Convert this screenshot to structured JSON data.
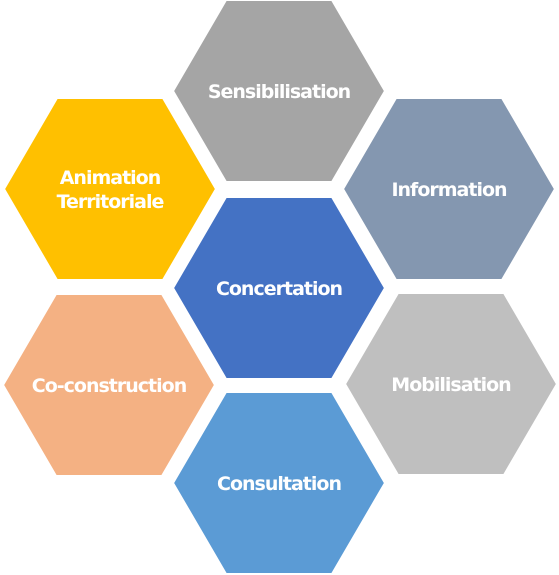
{
  "diagram": {
    "nodes": [
      {
        "id": "sensibilisation",
        "lines": [
          "Sensibilisation"
        ],
        "color": "#A5A5A5"
      },
      {
        "id": "information",
        "lines": [
          "Information"
        ],
        "color": "#8497B0"
      },
      {
        "id": "animation",
        "lines": [
          "Animation",
          "Territoriale"
        ],
        "color": "#FFC000"
      },
      {
        "id": "concertation",
        "lines": [
          "Concertation"
        ],
        "color": "#4472C4"
      },
      {
        "id": "mobilisation",
        "lines": [
          "Mobilisation"
        ],
        "color": "#BFBFBF"
      },
      {
        "id": "co-construction",
        "lines": [
          "Co-construction"
        ],
        "color": "#F4B183"
      },
      {
        "id": "consultation",
        "lines": [
          "Consultation"
        ],
        "color": "#5B9BD5"
      }
    ]
  }
}
